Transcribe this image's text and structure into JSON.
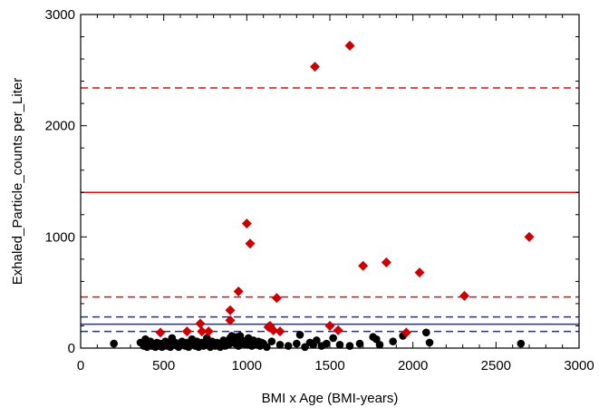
{
  "chart_data": {
    "type": "scatter",
    "title": "",
    "xlabel": "BMI x Age (BMI-years)",
    "ylabel": "Exhaled_Particle_counts per_Liter",
    "xlim": [
      0,
      3000
    ],
    "ylim": [
      0,
      3000
    ],
    "x_ticks": [
      0,
      500,
      1000,
      1500,
      2000,
      2500,
      3000
    ],
    "y_ticks": [
      0,
      1000,
      2000,
      3000
    ],
    "x_tick_labels": [
      "0",
      "500",
      "1000",
      "1500",
      "2000",
      "2500",
      "3000"
    ],
    "y_tick_labels": [
      "0",
      "1000",
      "2000",
      "3000"
    ],
    "grid": false,
    "legend": "none",
    "series": [
      {
        "marker": "diamond",
        "color": "#cc0000",
        "points": [
          [
            480,
            140
          ],
          [
            640,
            150
          ],
          [
            720,
            220
          ],
          [
            730,
            150
          ],
          [
            770,
            150
          ],
          [
            900,
            250
          ],
          [
            900,
            340
          ],
          [
            950,
            510
          ],
          [
            1000,
            1120
          ],
          [
            1020,
            940
          ],
          [
            1130,
            190
          ],
          [
            1140,
            200
          ],
          [
            1160,
            160
          ],
          [
            1180,
            450
          ],
          [
            1200,
            150
          ],
          [
            1410,
            2530
          ],
          [
            1620,
            2720
          ],
          [
            1500,
            200
          ],
          [
            1550,
            160
          ],
          [
            1700,
            740
          ],
          [
            1840,
            770
          ],
          [
            1960,
            140
          ],
          [
            2040,
            680
          ],
          [
            2310,
            470
          ],
          [
            2700,
            1000
          ]
        ]
      },
      {
        "marker": "circle",
        "color": "#000000",
        "points": [
          [
            200,
            40
          ],
          [
            360,
            50
          ],
          [
            380,
            20
          ],
          [
            390,
            80
          ],
          [
            400,
            10
          ],
          [
            410,
            40
          ],
          [
            420,
            60
          ],
          [
            430,
            20
          ],
          [
            440,
            30
          ],
          [
            450,
            10
          ],
          [
            460,
            50
          ],
          [
            470,
            20
          ],
          [
            480,
            40
          ],
          [
            490,
            10
          ],
          [
            500,
            30
          ],
          [
            510,
            60
          ],
          [
            520,
            20
          ],
          [
            530,
            40
          ],
          [
            540,
            10
          ],
          [
            550,
            90
          ],
          [
            560,
            30
          ],
          [
            570,
            50
          ],
          [
            580,
            20
          ],
          [
            590,
            10
          ],
          [
            600,
            40
          ],
          [
            610,
            60
          ],
          [
            620,
            30
          ],
          [
            630,
            20
          ],
          [
            640,
            50
          ],
          [
            650,
            10
          ],
          [
            660,
            30
          ],
          [
            670,
            80
          ],
          [
            680,
            40
          ],
          [
            690,
            20
          ],
          [
            700,
            60
          ],
          [
            710,
            10
          ],
          [
            720,
            30
          ],
          [
            730,
            50
          ],
          [
            740,
            20
          ],
          [
            750,
            40
          ],
          [
            760,
            90
          ],
          [
            770,
            30
          ],
          [
            780,
            10
          ],
          [
            790,
            60
          ],
          [
            800,
            40
          ],
          [
            810,
            20
          ],
          [
            820,
            50
          ],
          [
            830,
            30
          ],
          [
            840,
            10
          ],
          [
            850,
            40
          ],
          [
            860,
            70
          ],
          [
            870,
            20
          ],
          [
            880,
            50
          ],
          [
            890,
            30
          ],
          [
            900,
            90
          ],
          [
            910,
            110
          ],
          [
            920,
            60
          ],
          [
            930,
            40
          ],
          [
            940,
            100
          ],
          [
            950,
            20
          ],
          [
            960,
            110
          ],
          [
            970,
            70
          ],
          [
            980,
            40
          ],
          [
            990,
            60
          ],
          [
            1000,
            30
          ],
          [
            1010,
            90
          ],
          [
            1020,
            50
          ],
          [
            1030,
            20
          ],
          [
            1040,
            70
          ],
          [
            1050,
            40
          ],
          [
            1060,
            30
          ],
          [
            1070,
            60
          ],
          [
            1080,
            20
          ],
          [
            1090,
            50
          ],
          [
            1100,
            40
          ],
          [
            1120,
            10
          ],
          [
            1150,
            60
          ],
          [
            1200,
            30
          ],
          [
            1250,
            20
          ],
          [
            1300,
            40
          ],
          [
            1320,
            120
          ],
          [
            1350,
            10
          ],
          [
            1380,
            50
          ],
          [
            1400,
            30
          ],
          [
            1420,
            70
          ],
          [
            1450,
            20
          ],
          [
            1480,
            40
          ],
          [
            1520,
            90
          ],
          [
            1560,
            30
          ],
          [
            1620,
            20
          ],
          [
            1680,
            40
          ],
          [
            1760,
            100
          ],
          [
            1780,
            80
          ],
          [
            1800,
            30
          ],
          [
            1880,
            60
          ],
          [
            1940,
            110
          ],
          [
            2080,
            140
          ],
          [
            2100,
            50
          ],
          [
            2650,
            40
          ]
        ]
      }
    ],
    "reference_lines": [
      {
        "y": 2340,
        "color": "#dd1111",
        "style": "dashed"
      },
      {
        "y": 1400,
        "color": "#dd1111",
        "style": "solid"
      },
      {
        "y": 460,
        "color": "#dd1111",
        "style": "dashed"
      },
      {
        "y": 280,
        "color": "#1a2fb8",
        "style": "dashed"
      },
      {
        "y": 215,
        "color": "#1a2fb8",
        "style": "solid"
      },
      {
        "y": 150,
        "color": "#1a2fb8",
        "style": "dashed"
      }
    ]
  }
}
